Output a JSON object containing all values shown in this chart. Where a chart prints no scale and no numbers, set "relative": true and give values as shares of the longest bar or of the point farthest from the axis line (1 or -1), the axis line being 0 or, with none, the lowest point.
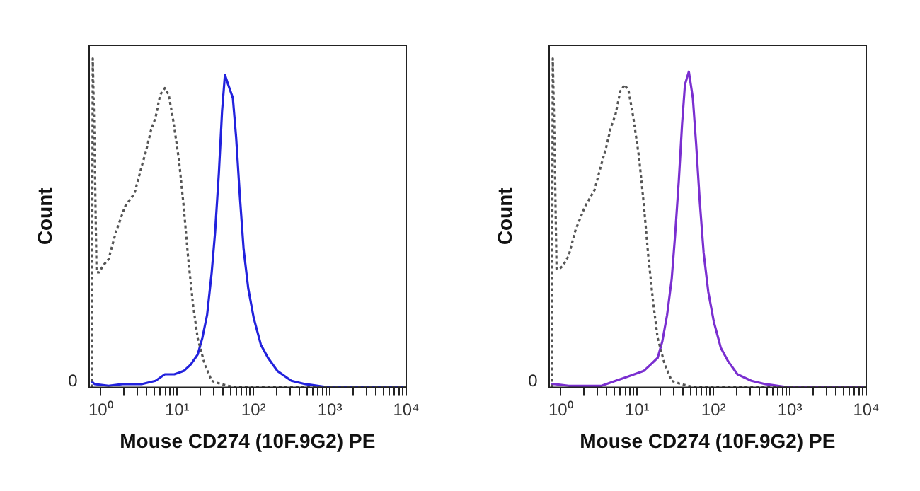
{
  "chart_data": [
    {
      "type": "line",
      "xlabel": "Mouse CD274 (10F.9G2) PE",
      "ylabel": "Count",
      "log": "x",
      "relative": true,
      "tick_labels": "x",
      "marker": "none",
      "xlim": [
        0.74,
        10000
      ],
      "xticks": [
        {
          "value": 1,
          "label": "10⁰"
        },
        {
          "value": 2,
          "label": null
        },
        {
          "value": 3,
          "label": null
        },
        {
          "value": 4,
          "label": null
        },
        {
          "value": 5,
          "label": null
        },
        {
          "value": 6,
          "label": null
        },
        {
          "value": 7,
          "label": null
        },
        {
          "value": 8,
          "label": null
        },
        {
          "value": 9,
          "label": null
        },
        {
          "value": 10,
          "label": "10¹"
        },
        {
          "value": 20,
          "label": null
        },
        {
          "value": 30,
          "label": null
        },
        {
          "value": 40,
          "label": null
        },
        {
          "value": 50,
          "label": null
        },
        {
          "value": 60,
          "label": null
        },
        {
          "value": 70,
          "label": null
        },
        {
          "value": 80,
          "label": null
        },
        {
          "value": 90,
          "label": null
        },
        {
          "value": 100,
          "label": "10²"
        },
        {
          "value": 200,
          "label": null
        },
        {
          "value": 300,
          "label": null
        },
        {
          "value": 400,
          "label": null
        },
        {
          "value": 500,
          "label": null
        },
        {
          "value": 600,
          "label": null
        },
        {
          "value": 700,
          "label": null
        },
        {
          "value": 800,
          "label": null
        },
        {
          "value": 900,
          "label": null
        },
        {
          "value": 1000,
          "label": "10³"
        },
        {
          "value": 2000,
          "label": null
        },
        {
          "value": 3000,
          "label": null
        },
        {
          "value": 4000,
          "label": null
        },
        {
          "value": 5000,
          "label": null
        },
        {
          "value": 6000,
          "label": null
        },
        {
          "value": 7000,
          "label": null
        },
        {
          "value": 8000,
          "label": null
        },
        {
          "value": 9000,
          "label": null
        },
        {
          "value": 10000,
          "label": "10⁴"
        }
      ],
      "annotations": [
        "0"
      ],
      "series": [
        {
          "color": "#555555",
          "line_style": "dotted",
          "x": [
            0.765,
            0.787,
            0.832,
            0.881,
            0.958,
            1.07,
            1.27,
            1.57,
            2.08,
            2.77,
            3.42,
            3.94,
            4.53,
            5.22,
            6.01,
            6.92,
            7.76,
            8.93,
            10.6,
            12.2,
            14.0,
            16.2,
            18.6,
            23.0,
            28.4,
            37.7,
            57.7,
            117,
            10000
          ],
          "values": [
            0,
            1,
            0.73,
            0.35,
            0.35,
            0.37,
            0.39,
            0.47,
            0.55,
            0.59,
            0.67,
            0.72,
            0.78,
            0.82,
            0.89,
            0.91,
            0.89,
            0.81,
            0.69,
            0.55,
            0.39,
            0.25,
            0.15,
            0.07,
            0.02,
            0.01,
            0,
            0,
            0
          ]
        },
        {
          "color": "#2222dd",
          "line_style": "solid",
          "x": [
            0.75,
            0.832,
            1.27,
            1.94,
            3.42,
            5.22,
            6.92,
            9.19,
            12.2,
            15.1,
            18.6,
            21.4,
            24.7,
            28.4,
            31.4,
            35.2,
            38.8,
            42.3,
            46.7,
            53.7,
            59.3,
            66.4,
            74.3,
            85.6,
            101,
            125,
            155,
            206,
            314,
            480,
            972,
            10000
          ],
          "values": [
            0.02,
            0.01,
            0.005,
            0.01,
            0.01,
            0.02,
            0.04,
            0.04,
            0.05,
            0.07,
            0.1,
            0.15,
            0.22,
            0.35,
            0.47,
            0.65,
            0.84,
            0.95,
            0.92,
            0.88,
            0.76,
            0.58,
            0.42,
            0.3,
            0.21,
            0.13,
            0.09,
            0.05,
            0.02,
            0.01,
            0,
            0
          ]
        }
      ]
    },
    {
      "type": "line",
      "xlabel": "Mouse CD274 (10F.9G2) PE",
      "ylabel": "Count",
      "log": "x",
      "relative": true,
      "tick_labels": "x",
      "marker": "none",
      "xlim": [
        0.74,
        10000
      ],
      "xticks": [
        {
          "value": 1,
          "label": "10⁰"
        },
        {
          "value": 2,
          "label": null
        },
        {
          "value": 3,
          "label": null
        },
        {
          "value": 4,
          "label": null
        },
        {
          "value": 5,
          "label": null
        },
        {
          "value": 6,
          "label": null
        },
        {
          "value": 7,
          "label": null
        },
        {
          "value": 8,
          "label": null
        },
        {
          "value": 9,
          "label": null
        },
        {
          "value": 10,
          "label": "10¹"
        },
        {
          "value": 20,
          "label": null
        },
        {
          "value": 30,
          "label": null
        },
        {
          "value": 40,
          "label": null
        },
        {
          "value": 50,
          "label": null
        },
        {
          "value": 60,
          "label": null
        },
        {
          "value": 70,
          "label": null
        },
        {
          "value": 80,
          "label": null
        },
        {
          "value": 90,
          "label": null
        },
        {
          "value": 100,
          "label": "10²"
        },
        {
          "value": 200,
          "label": null
        },
        {
          "value": 300,
          "label": null
        },
        {
          "value": 400,
          "label": null
        },
        {
          "value": 500,
          "label": null
        },
        {
          "value": 600,
          "label": null
        },
        {
          "value": 700,
          "label": null
        },
        {
          "value": 800,
          "label": null
        },
        {
          "value": 900,
          "label": null
        },
        {
          "value": 1000,
          "label": "10³"
        },
        {
          "value": 2000,
          "label": null
        },
        {
          "value": 3000,
          "label": null
        },
        {
          "value": 4000,
          "label": null
        },
        {
          "value": 5000,
          "label": null
        },
        {
          "value": 6000,
          "label": null
        },
        {
          "value": 7000,
          "label": null
        },
        {
          "value": 8000,
          "label": null
        },
        {
          "value": 9000,
          "label": null
        },
        {
          "value": 10000,
          "label": "10⁴"
        }
      ],
      "annotations": [
        "0"
      ],
      "series": [
        {
          "color": "#555555",
          "line_style": "dotted",
          "x": [
            0.765,
            0.787,
            0.832,
            0.881,
            0.958,
            1.07,
            1.27,
            1.57,
            2.08,
            2.77,
            3.42,
            3.94,
            4.53,
            5.22,
            6.01,
            6.92,
            7.76,
            8.93,
            10.6,
            12.2,
            14.0,
            16.2,
            18.6,
            23.0,
            28.4,
            37.7,
            57.7,
            117,
            10000
          ],
          "values": [
            0,
            1,
            0.73,
            0.36,
            0.36,
            0.37,
            0.4,
            0.48,
            0.55,
            0.6,
            0.68,
            0.73,
            0.79,
            0.83,
            0.9,
            0.92,
            0.9,
            0.82,
            0.7,
            0.56,
            0.4,
            0.26,
            0.15,
            0.07,
            0.02,
            0.01,
            0,
            0,
            0
          ]
        },
        {
          "color": "#7a2fd0",
          "line_style": "solid",
          "x": [
            0.75,
            0.832,
            1.27,
            1.94,
            3.42,
            5.22,
            6.92,
            9.19,
            12.2,
            15.1,
            18.6,
            21.4,
            24.7,
            28.4,
            31.4,
            35.2,
            38.8,
            42.3,
            47.6,
            53.7,
            59.3,
            66.4,
            74.3,
            85.6,
            101,
            125,
            155,
            206,
            314,
            480,
            972,
            10000
          ],
          "values": [
            0.01,
            0.01,
            0.005,
            0.005,
            0.005,
            0.02,
            0.03,
            0.04,
            0.05,
            0.07,
            0.09,
            0.14,
            0.22,
            0.33,
            0.46,
            0.63,
            0.8,
            0.92,
            0.96,
            0.88,
            0.74,
            0.56,
            0.41,
            0.29,
            0.2,
            0.12,
            0.08,
            0.04,
            0.02,
            0.01,
            0,
            0
          ]
        }
      ]
    }
  ]
}
